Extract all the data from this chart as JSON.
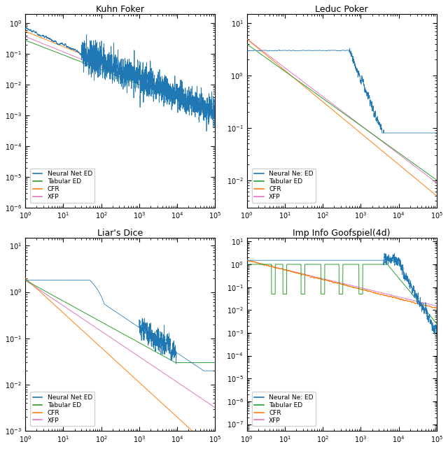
{
  "titles": [
    "Kuhn Foker",
    "Leduc Poker",
    "Liar's Dice",
    "Imp Info Goofspiel(4d)"
  ],
  "colors": {
    "neural_net": "#1f77b4",
    "tabular": "#2ca02c",
    "cfr": "#ff7f0e",
    "xfp": "#e377c2"
  },
  "legend_labels": [
    "Neural Net ED",
    "Tabular ED",
    "CFR",
    "XFP"
  ],
  "legend_labels_alt": [
    "Neural Ne: ED",
    "Tabular ED",
    "CFR",
    "XFP"
  ],
  "kuhn_ylim": [
    1e-06,
    2.0
  ],
  "leduc_ylim": [
    0.003,
    15.0
  ],
  "liars_ylim": [
    0.001,
    15.0
  ],
  "goof_ylim": [
    5e-08,
    15.0
  ]
}
